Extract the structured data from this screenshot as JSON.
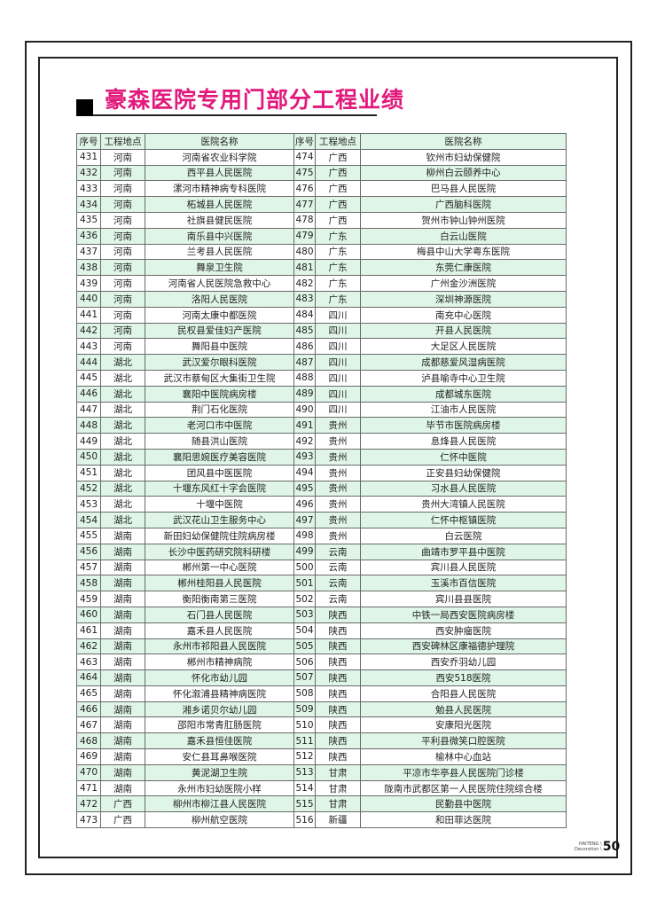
{
  "title": "豪森医院专用门部分工程业绩",
  "colors": {
    "title": "#e2197c",
    "row_stripe": "#dff5e7"
  },
  "headers": [
    "序号",
    "工程地点",
    "医院名称",
    "序号",
    "工程地点",
    "医院名称"
  ],
  "rows": [
    [
      "431",
      "河南",
      "河南省农业科学院",
      "474",
      "广西",
      "钦州市妇幼保健院"
    ],
    [
      "432",
      "河南",
      "西平县人民医院",
      "475",
      "广西",
      "柳州白云颐养中心"
    ],
    [
      "433",
      "河南",
      "漯河市精神病专科医院",
      "476",
      "广西",
      "巴马县人民医院"
    ],
    [
      "434",
      "河南",
      "柘城县人民医院",
      "477",
      "广西",
      "广西脑科医院"
    ],
    [
      "435",
      "河南",
      "社旗县健民医院",
      "478",
      "广西",
      "贺州市钟山钟州医院"
    ],
    [
      "436",
      "河南",
      "南乐县中兴医院",
      "479",
      "广东",
      "白云山医院"
    ],
    [
      "437",
      "河南",
      "兰考县人民医院",
      "480",
      "广东",
      "梅县中山大学粤东医院"
    ],
    [
      "438",
      "河南",
      "舞泉卫生院",
      "481",
      "广东",
      "东莞仁康医院"
    ],
    [
      "439",
      "河南",
      "河南省人民医院急救中心",
      "482",
      "广东",
      "广州金沙洲医院"
    ],
    [
      "440",
      "河南",
      "洛阳人民医院",
      "483",
      "广东",
      "深圳神源医院"
    ],
    [
      "441",
      "河南",
      "河南太康中都医院",
      "484",
      "四川",
      "南充中心医院"
    ],
    [
      "442",
      "河南",
      "民权县爱佳妇产医院",
      "485",
      "四川",
      "开县人民医院"
    ],
    [
      "443",
      "河南",
      "舞阳县中医院",
      "486",
      "四川",
      "大足区人民医院"
    ],
    [
      "444",
      "湖北",
      "武汉爱尔眼科医院",
      "487",
      "四川",
      "成都慈爱风湿病医院"
    ],
    [
      "445",
      "湖北",
      "武汉市蔡甸区大集街卫生院",
      "488",
      "四川",
      "泸县喻寺中心卫生院"
    ],
    [
      "446",
      "湖北",
      "襄阳中医院病房楼",
      "489",
      "四川",
      "成都城东医院"
    ],
    [
      "447",
      "湖北",
      "荆门石化医院",
      "490",
      "四川",
      "江油市人民医院"
    ],
    [
      "448",
      "湖北",
      "老河口市中医院",
      "491",
      "贵州",
      "毕节市医院病房楼"
    ],
    [
      "449",
      "湖北",
      "随县洪山医院",
      "492",
      "贵州",
      "息烽县人民医院"
    ],
    [
      "450",
      "湖北",
      "襄阳思婉医疗美容医院",
      "493",
      "贵州",
      "仁怀中医院"
    ],
    [
      "451",
      "湖北",
      "团风县中医医院",
      "494",
      "贵州",
      "正安县妇幼保健院"
    ],
    [
      "452",
      "湖北",
      "十堰东风红十字会医院",
      "495",
      "贵州",
      "习水县人民医院"
    ],
    [
      "453",
      "湖北",
      "十堰中医院",
      "496",
      "贵州",
      "贵州大湾镇人民医院"
    ],
    [
      "454",
      "湖北",
      "武汉花山卫生服务中心",
      "497",
      "贵州",
      "仁怀中枢镇医院"
    ],
    [
      "455",
      "湖南",
      "新田妇幼保健院住院病房楼",
      "498",
      "贵州",
      "白云医院"
    ],
    [
      "456",
      "湖南",
      "长沙中医药研究院科研楼",
      "499",
      "云南",
      "曲靖市罗平县中医院"
    ],
    [
      "457",
      "湖南",
      "郴州第一中心医院",
      "500",
      "云南",
      "宾川县人民医院"
    ],
    [
      "458",
      "湖南",
      "郴州桂阳县人民医院",
      "501",
      "云南",
      "玉溪市百信医院"
    ],
    [
      "459",
      "湖南",
      "衡阳衡南第三医院",
      "502",
      "云南",
      "宾川县县医院"
    ],
    [
      "460",
      "湖南",
      "石门县人民医院",
      "503",
      "陕西",
      "中铁一局西安医院病房楼"
    ],
    [
      "461",
      "湖南",
      "嘉禾县人民医院",
      "504",
      "陕西",
      "西安肿瘤医院"
    ],
    [
      "462",
      "湖南",
      "永州市祁阳县人民医院",
      "505",
      "陕西",
      "西安碑林区康福德护理院"
    ],
    [
      "463",
      "湖南",
      "郴州市精神病院",
      "506",
      "陕西",
      "西安乔羽幼儿园"
    ],
    [
      "464",
      "湖南",
      "怀化市幼儿园",
      "507",
      "陕西",
      "西安518医院"
    ],
    [
      "465",
      "湖南",
      "怀化溆浦县精神病医院",
      "508",
      "陕西",
      "合阳县人民医院"
    ],
    [
      "466",
      "湖南",
      "湘乡诺贝尔幼儿园",
      "509",
      "陕西",
      "勉县人民医院"
    ],
    [
      "467",
      "湖南",
      "邵阳市常青肛肠医院",
      "510",
      "陕西",
      "安康阳光医院"
    ],
    [
      "468",
      "湖南",
      "嘉禾县恒佳医院",
      "511",
      "陕西",
      "平利县微笑口腔医院"
    ],
    [
      "469",
      "湖南",
      "安仁县耳鼻喉医院",
      "512",
      "陕西",
      "榆林中心血站"
    ],
    [
      "470",
      "湖南",
      "黄泥湖卫生院",
      "513",
      "甘肃",
      "平凉市华亭县人民医院门诊楼"
    ],
    [
      "471",
      "湖南",
      "永州市妇幼医院小样",
      "514",
      "甘肃",
      "陇南市武都区第一人民医院住院综合楼"
    ],
    [
      "472",
      "广西",
      "柳州市柳江县人民医院",
      "515",
      "甘肃",
      "民勤县中医院"
    ],
    [
      "473",
      "广西",
      "柳州航空医院",
      "516",
      "新疆",
      "和田菲达医院"
    ]
  ],
  "footer": {
    "brand_line1": "HAITENG \\",
    "brand_line2": "Decoration \\",
    "page_number": "50"
  }
}
